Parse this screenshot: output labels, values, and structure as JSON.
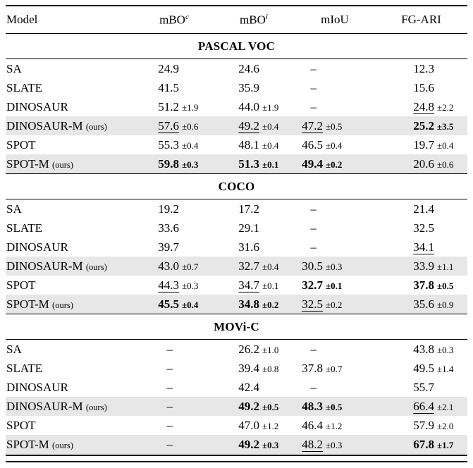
{
  "header": {
    "model": "Model",
    "cols": [
      {
        "base": "mBO",
        "sup": "c"
      },
      {
        "base": "mBO",
        "sup": "i"
      },
      {
        "base": "mIoU",
        "sup": ""
      },
      {
        "base": "FG-ARI",
        "sup": ""
      }
    ]
  },
  "ours_suffix": "(ours)",
  "dash": "–",
  "colors": {
    "highlight_row": "#e7e7e7",
    "rule": "#000000",
    "background": "#ffffff"
  },
  "sections": [
    {
      "title": "PASCAL VOC",
      "rows": [
        {
          "model": "SA",
          "ours": false,
          "highlight": false,
          "cells": [
            {
              "v": "24.9",
              "pm": ""
            },
            {
              "v": "24.6",
              "pm": ""
            },
            {
              "v": "–",
              "pm": ""
            },
            {
              "v": "12.3",
              "pm": ""
            }
          ]
        },
        {
          "model": "SLATE",
          "ours": false,
          "highlight": false,
          "cells": [
            {
              "v": "41.5",
              "pm": ""
            },
            {
              "v": "35.9",
              "pm": ""
            },
            {
              "v": "–",
              "pm": ""
            },
            {
              "v": "15.6",
              "pm": ""
            }
          ]
        },
        {
          "model": "DINOSAUR",
          "ours": false,
          "highlight": false,
          "cells": [
            {
              "v": "51.2",
              "pm": "±1.9"
            },
            {
              "v": "44.0",
              "pm": "±1.9"
            },
            {
              "v": "–",
              "pm": ""
            },
            {
              "v": "24.8",
              "pm": "±2.2",
              "u": true
            }
          ]
        },
        {
          "model": "DINOSAUR-M",
          "ours": true,
          "highlight": true,
          "cells": [
            {
              "v": "57.6",
              "pm": "±0.6",
              "u": true
            },
            {
              "v": "49.2",
              "pm": "±0.4",
              "u": true
            },
            {
              "v": "47.2",
              "pm": "±0.5",
              "u": true
            },
            {
              "v": "25.2",
              "pm": "±3.5",
              "b": true
            }
          ]
        },
        {
          "model": "SPOT",
          "ours": false,
          "highlight": false,
          "cells": [
            {
              "v": "55.3",
              "pm": "±0.4"
            },
            {
              "v": "48.1",
              "pm": "±0.4"
            },
            {
              "v": "46.5",
              "pm": "±0.4"
            },
            {
              "v": "19.7",
              "pm": "±0.4"
            }
          ]
        },
        {
          "model": "SPOT-M",
          "ours": true,
          "highlight": true,
          "cells": [
            {
              "v": "59.8",
              "pm": "±0.3",
              "b": true
            },
            {
              "v": "51.3",
              "pm": "±0.1",
              "b": true
            },
            {
              "v": "49.4",
              "pm": "±0.2",
              "b": true
            },
            {
              "v": "20.6",
              "pm": "±0.6"
            }
          ]
        }
      ]
    },
    {
      "title": "COCO",
      "rows": [
        {
          "model": "SA",
          "ours": false,
          "highlight": false,
          "cells": [
            {
              "v": "19.2",
              "pm": ""
            },
            {
              "v": "17.2",
              "pm": ""
            },
            {
              "v": "–",
              "pm": ""
            },
            {
              "v": "21.4",
              "pm": ""
            }
          ]
        },
        {
          "model": "SLATE",
          "ours": false,
          "highlight": false,
          "cells": [
            {
              "v": "33.6",
              "pm": ""
            },
            {
              "v": "29.1",
              "pm": ""
            },
            {
              "v": "–",
              "pm": ""
            },
            {
              "v": "32.5",
              "pm": ""
            }
          ]
        },
        {
          "model": "DINOSAUR",
          "ours": false,
          "highlight": false,
          "cells": [
            {
              "v": "39.7",
              "pm": ""
            },
            {
              "v": "31.6",
              "pm": ""
            },
            {
              "v": "–",
              "pm": ""
            },
            {
              "v": "34.1",
              "pm": "",
              "u": true
            }
          ]
        },
        {
          "model": "DINOSAUR-M",
          "ours": true,
          "highlight": true,
          "cells": [
            {
              "v": "43.0",
              "pm": "±0.7"
            },
            {
              "v": "32.7",
              "pm": "±0.4"
            },
            {
              "v": "30.5",
              "pm": "±0.3"
            },
            {
              "v": "33.9",
              "pm": "±1.1"
            }
          ]
        },
        {
          "model": "SPOT",
          "ours": false,
          "highlight": false,
          "cells": [
            {
              "v": "44.3",
              "pm": "±0.3",
              "u": true
            },
            {
              "v": "34.7",
              "pm": "±0.1",
              "u": true
            },
            {
              "v": "32.7",
              "pm": "±0.1",
              "b": true
            },
            {
              "v": "37.8",
              "pm": "±0.5",
              "b": true
            }
          ]
        },
        {
          "model": "SPOT-M",
          "ours": true,
          "highlight": true,
          "cells": [
            {
              "v": "45.5",
              "pm": "±0.4",
              "b": true
            },
            {
              "v": "34.8",
              "pm": "±0.2",
              "b": true
            },
            {
              "v": "32.5",
              "pm": "±0.2",
              "u": true
            },
            {
              "v": "35.6",
              "pm": "±0.9"
            }
          ]
        }
      ]
    },
    {
      "title": "MOVi-C",
      "rows": [
        {
          "model": "SA",
          "ours": false,
          "highlight": false,
          "cells": [
            {
              "v": "–",
              "pm": ""
            },
            {
              "v": "26.2",
              "pm": "±1.0"
            },
            {
              "v": "–",
              "pm": ""
            },
            {
              "v": "43.8",
              "pm": "±0.3"
            }
          ]
        },
        {
          "model": "SLATE",
          "ours": false,
          "highlight": false,
          "cells": [
            {
              "v": "–",
              "pm": ""
            },
            {
              "v": "39.4",
              "pm": "±0.8"
            },
            {
              "v": "37.8",
              "pm": "±0.7"
            },
            {
              "v": "49.5",
              "pm": "±1.4"
            }
          ]
        },
        {
          "model": "DINOSAUR",
          "ours": false,
          "highlight": false,
          "cells": [
            {
              "v": "–",
              "pm": ""
            },
            {
              "v": "42.4",
              "pm": ""
            },
            {
              "v": "–",
              "pm": ""
            },
            {
              "v": "55.7",
              "pm": ""
            }
          ]
        },
        {
          "model": "DINOSAUR-M",
          "ours": true,
          "highlight": true,
          "cells": [
            {
              "v": "–",
              "pm": ""
            },
            {
              "v": "49.2",
              "pm": "±0.5",
              "b": true
            },
            {
              "v": "48.3",
              "pm": "±0.5",
              "b": true
            },
            {
              "v": "66.4",
              "pm": "±2.1",
              "u": true
            }
          ]
        },
        {
          "model": "SPOT",
          "ours": false,
          "highlight": false,
          "cells": [
            {
              "v": "–",
              "pm": ""
            },
            {
              "v": "47.0",
              "pm": "±1.2"
            },
            {
              "v": "46.4",
              "pm": "±1.2"
            },
            {
              "v": "57.9",
              "pm": "±2.0"
            }
          ]
        },
        {
          "model": "SPOT-M",
          "ours": true,
          "highlight": true,
          "cells": [
            {
              "v": "–",
              "pm": ""
            },
            {
              "v": "49.2",
              "pm": "±0.3",
              "b": true
            },
            {
              "v": "48.2",
              "pm": "±0.3",
              "u": true
            },
            {
              "v": "67.8",
              "pm": "±1.7",
              "b": true
            }
          ]
        }
      ]
    }
  ]
}
